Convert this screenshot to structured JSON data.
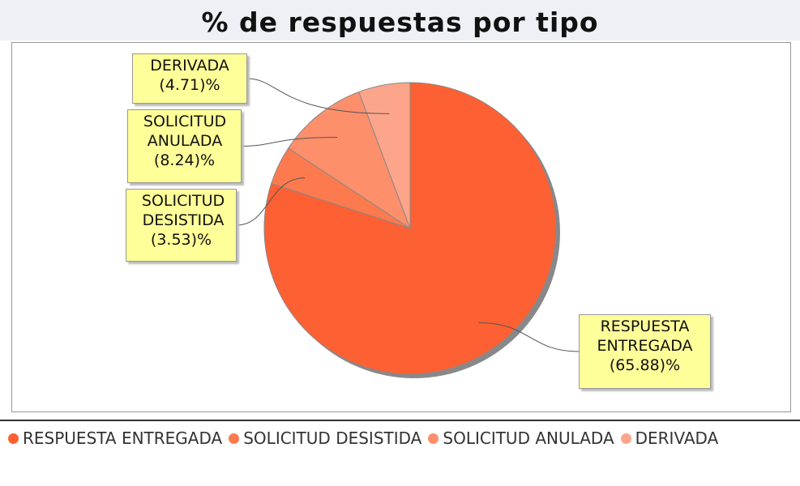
{
  "chart_data": {
    "type": "pie",
    "title": "% de respuestas por tipo",
    "categories": [
      "RESPUESTA ENTREGADA",
      "SOLICITUD DESISTIDA",
      "SOLICITUD ANULADA",
      "DERIVADA"
    ],
    "values": [
      65.88,
      3.53,
      8.24,
      4.71
    ],
    "value_labels": [
      "(65.88)%",
      "(3.53)%",
      "(8.24)%",
      "(4.71)%"
    ],
    "colors": [
      "#fd6033",
      "#fd7a4f",
      "#fd8f6b",
      "#fca58a"
    ],
    "legend": "bottom"
  }
}
